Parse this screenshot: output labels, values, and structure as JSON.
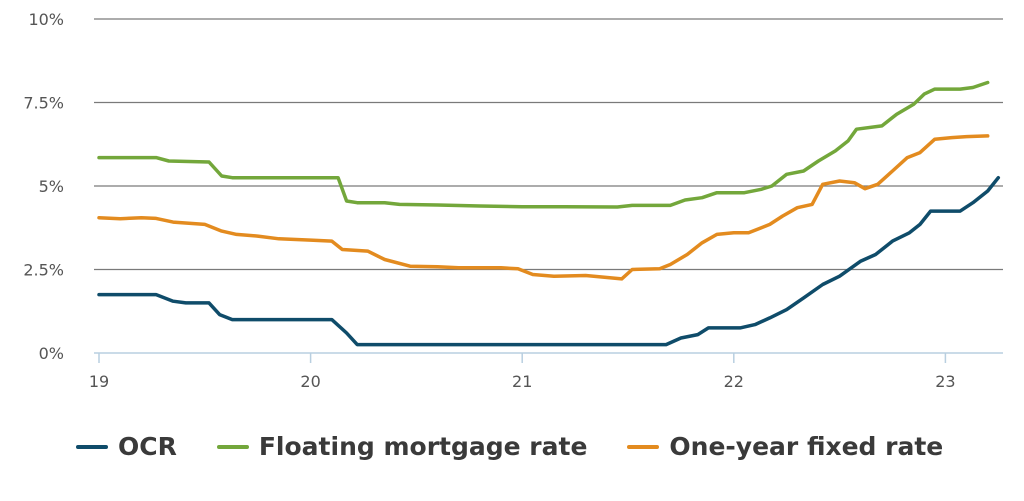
{
  "chart_data": {
    "type": "line",
    "title": "",
    "xlabel": "",
    "ylabel": "",
    "xlim": [
      19,
      23.25
    ],
    "ylim": [
      0,
      10
    ],
    "x_ticks": [
      {
        "value": 19,
        "label": "19"
      },
      {
        "value": 20,
        "label": "20"
      },
      {
        "value": 21,
        "label": "21"
      },
      {
        "value": 22,
        "label": "22"
      },
      {
        "value": 23,
        "label": "23"
      }
    ],
    "y_ticks": [
      {
        "value": 0,
        "label": "0%"
      },
      {
        "value": 2.5,
        "label": "2.5%"
      },
      {
        "value": 5,
        "label": "5%"
      },
      {
        "value": 7.5,
        "label": "7.5%"
      },
      {
        "value": 10,
        "label": "10%"
      }
    ],
    "grid": "horizontal",
    "legend_position": "bottom",
    "series": [
      {
        "name": "OCR",
        "color": "#0f4c6a",
        "points": [
          [
            19.0,
            1.75
          ],
          [
            19.27,
            1.75
          ],
          [
            19.35,
            1.55
          ],
          [
            19.41,
            1.5
          ],
          [
            19.52,
            1.5
          ],
          [
            19.57,
            1.15
          ],
          [
            19.63,
            1.0
          ],
          [
            20.1,
            1.0
          ],
          [
            20.17,
            0.6
          ],
          [
            20.22,
            0.25
          ],
          [
            21.68,
            0.25
          ],
          [
            21.75,
            0.45
          ],
          [
            21.83,
            0.55
          ],
          [
            21.88,
            0.75
          ],
          [
            22.03,
            0.75
          ],
          [
            22.1,
            0.85
          ],
          [
            22.17,
            1.05
          ],
          [
            22.25,
            1.3
          ],
          [
            22.33,
            1.65
          ],
          [
            22.42,
            2.05
          ],
          [
            22.5,
            2.3
          ],
          [
            22.6,
            2.75
          ],
          [
            22.67,
            2.95
          ],
          [
            22.75,
            3.35
          ],
          [
            22.83,
            3.6
          ],
          [
            22.88,
            3.85
          ],
          [
            22.93,
            4.25
          ],
          [
            23.07,
            4.25
          ],
          [
            23.13,
            4.5
          ],
          [
            23.2,
            4.85
          ],
          [
            23.25,
            5.25
          ]
        ]
      },
      {
        "name": "Floating mortgage rate",
        "color": "#73a73b",
        "points": [
          [
            19.0,
            5.85
          ],
          [
            19.27,
            5.85
          ],
          [
            19.33,
            5.75
          ],
          [
            19.52,
            5.72
          ],
          [
            19.58,
            5.3
          ],
          [
            19.63,
            5.25
          ],
          [
            20.08,
            5.25
          ],
          [
            20.13,
            5.25
          ],
          [
            20.17,
            4.55
          ],
          [
            20.22,
            4.5
          ],
          [
            20.35,
            4.5
          ],
          [
            20.42,
            4.45
          ],
          [
            20.6,
            4.43
          ],
          [
            20.8,
            4.4
          ],
          [
            21.0,
            4.38
          ],
          [
            21.2,
            4.38
          ],
          [
            21.45,
            4.37
          ],
          [
            21.52,
            4.42
          ],
          [
            21.7,
            4.42
          ],
          [
            21.77,
            4.58
          ],
          [
            21.85,
            4.65
          ],
          [
            21.92,
            4.8
          ],
          [
            22.05,
            4.8
          ],
          [
            22.13,
            4.9
          ],
          [
            22.18,
            5.0
          ],
          [
            22.25,
            5.35
          ],
          [
            22.33,
            5.45
          ],
          [
            22.4,
            5.75
          ],
          [
            22.48,
            6.05
          ],
          [
            22.54,
            6.35
          ],
          [
            22.58,
            6.7
          ],
          [
            22.7,
            6.8
          ],
          [
            22.77,
            7.15
          ],
          [
            22.85,
            7.45
          ],
          [
            22.9,
            7.75
          ],
          [
            22.95,
            7.9
          ],
          [
            23.07,
            7.9
          ],
          [
            23.13,
            7.95
          ],
          [
            23.2,
            8.1
          ]
        ]
      },
      {
        "name": "One-year fixed rate",
        "color": "#e38b1f",
        "points": [
          [
            19.0,
            4.05
          ],
          [
            19.1,
            4.02
          ],
          [
            19.2,
            4.05
          ],
          [
            19.27,
            4.03
          ],
          [
            19.35,
            3.92
          ],
          [
            19.5,
            3.85
          ],
          [
            19.58,
            3.65
          ],
          [
            19.65,
            3.55
          ],
          [
            19.75,
            3.5
          ],
          [
            19.85,
            3.42
          ],
          [
            20.0,
            3.38
          ],
          [
            20.1,
            3.35
          ],
          [
            20.15,
            3.1
          ],
          [
            20.27,
            3.05
          ],
          [
            20.35,
            2.8
          ],
          [
            20.47,
            2.6
          ],
          [
            20.6,
            2.58
          ],
          [
            20.7,
            2.55
          ],
          [
            20.9,
            2.55
          ],
          [
            20.98,
            2.52
          ],
          [
            21.05,
            2.35
          ],
          [
            21.15,
            2.3
          ],
          [
            21.3,
            2.32
          ],
          [
            21.42,
            2.25
          ],
          [
            21.47,
            2.22
          ],
          [
            21.52,
            2.5
          ],
          [
            21.65,
            2.52
          ],
          [
            21.7,
            2.65
          ],
          [
            21.78,
            2.95
          ],
          [
            21.85,
            3.3
          ],
          [
            21.92,
            3.55
          ],
          [
            22.0,
            3.6
          ],
          [
            22.07,
            3.6
          ],
          [
            22.17,
            3.85
          ],
          [
            22.23,
            4.1
          ],
          [
            22.3,
            4.35
          ],
          [
            22.37,
            4.45
          ],
          [
            22.42,
            5.05
          ],
          [
            22.5,
            5.15
          ],
          [
            22.57,
            5.1
          ],
          [
            22.62,
            4.92
          ],
          [
            22.68,
            5.05
          ],
          [
            22.75,
            5.45
          ],
          [
            22.82,
            5.85
          ],
          [
            22.88,
            6.0
          ],
          [
            22.95,
            6.4
          ],
          [
            23.03,
            6.45
          ],
          [
            23.1,
            6.48
          ],
          [
            23.2,
            6.5
          ]
        ]
      }
    ]
  }
}
